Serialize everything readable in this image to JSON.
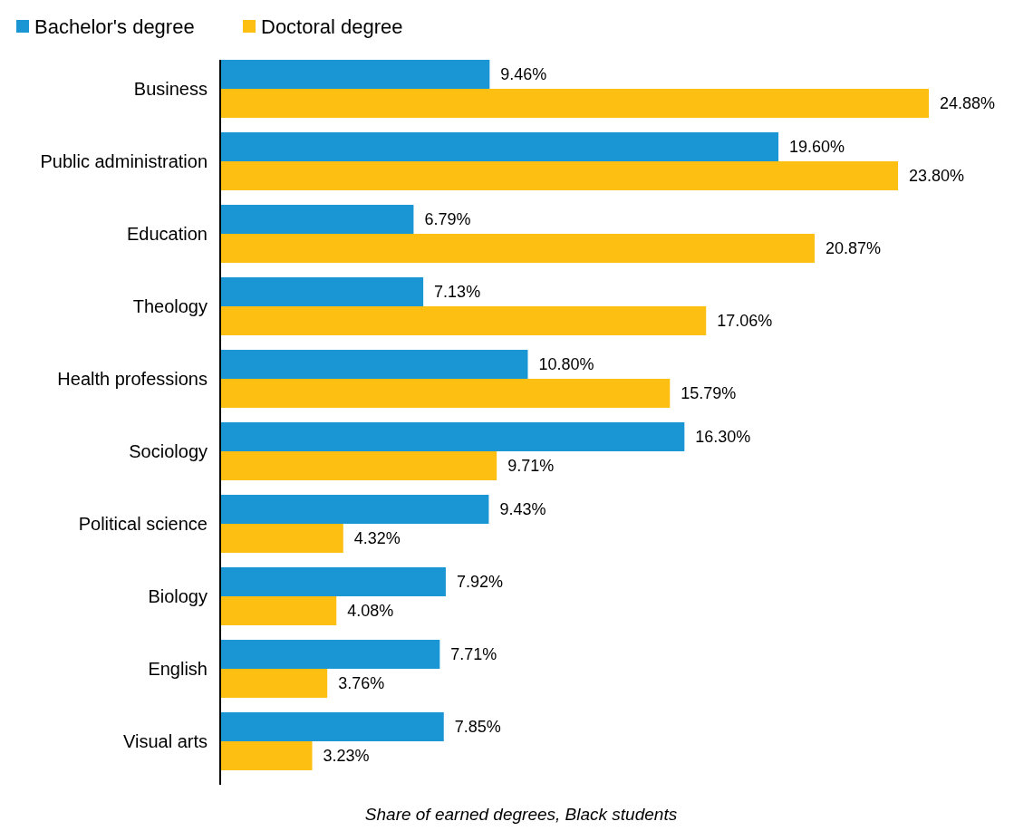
{
  "chart_data": {
    "type": "bar",
    "orientation": "horizontal",
    "xlabel": "Share of earned degrees, Black students",
    "categories": [
      "Business",
      "Public administration",
      "Education",
      "Theology",
      "Health professions",
      "Sociology",
      "Political science",
      "Biology",
      "English",
      "Visual arts"
    ],
    "series": [
      {
        "name": "Bachelor's degree",
        "color": "#1a96d4",
        "values": [
          9.46,
          19.6,
          6.79,
          7.13,
          10.8,
          16.3,
          9.43,
          7.92,
          7.71,
          7.85
        ],
        "value_labels": [
          "9.46%",
          "19.60%",
          "6.79%",
          "7.13%",
          "10.80%",
          "16.30%",
          "9.43%",
          "7.92%",
          "7.71%",
          "7.85%"
        ]
      },
      {
        "name": "Doctoral degree",
        "color": "#fdbf11",
        "values": [
          24.88,
          23.8,
          20.87,
          17.06,
          15.79,
          9.71,
          4.32,
          4.08,
          3.76,
          3.23
        ],
        "value_labels": [
          "24.88%",
          "23.80%",
          "20.87%",
          "17.06%",
          "15.79%",
          "9.71%",
          "4.32%",
          "4.08%",
          "3.76%",
          "3.23%"
        ]
      }
    ],
    "legend": "top left"
  }
}
